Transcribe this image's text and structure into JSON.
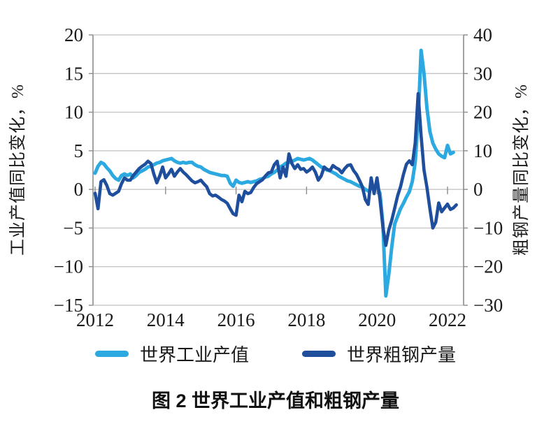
{
  "caption": "图 2  世界工业产值和粗钢产量",
  "chart_data": {
    "type": "line",
    "frequency": "monthly",
    "x_start": "2012-01",
    "unit": "%",
    "grid": true,
    "legend_position": "bottom",
    "x_ticks": {
      "labels": [
        "2012",
        "2014",
        "2016",
        "2018",
        "2020",
        "2022"
      ],
      "years": [
        2012,
        2014,
        2016,
        2018,
        2020,
        2022
      ]
    },
    "left_axis": {
      "label": "工业产值同比变化，%",
      "range": [
        -15,
        20
      ],
      "ticks": [
        20,
        15,
        10,
        5,
        0,
        -5,
        -10,
        -15
      ],
      "tick_labels": [
        "20",
        "15",
        "10",
        "5",
        "0",
        "−5",
        "−10",
        "−15"
      ]
    },
    "right_axis": {
      "label": "粗钢产量同比变化，%",
      "range": [
        -30,
        40
      ],
      "ticks": [
        40,
        30,
        20,
        10,
        0,
        -10,
        -20,
        -30
      ],
      "tick_labels": [
        "40",
        "30",
        "20",
        "10",
        "0",
        "−10",
        "−20",
        "−30"
      ]
    },
    "series": [
      {
        "name": "世界工业产值",
        "axis": "left",
        "color": "#2BA9E0",
        "x_end": "2022-03",
        "values": [
          2.1,
          3.0,
          3.5,
          3.3,
          2.8,
          2.4,
          1.8,
          1.4,
          1.2,
          1.8,
          2.0,
          1.8,
          2.0,
          1.5,
          1.8,
          2.2,
          2.4,
          2.6,
          2.9,
          3.0,
          3.2,
          3.4,
          3.5,
          3.7,
          3.8,
          3.9,
          4.0,
          3.7,
          3.5,
          3.4,
          3.5,
          3.4,
          3.5,
          3.5,
          3.2,
          3.0,
          2.9,
          2.6,
          2.4,
          2.2,
          2.1,
          2.0,
          1.9,
          1.8,
          1.8,
          1.7,
          0.8,
          0.4,
          1.2,
          0.9,
          0.8,
          0.9,
          1.0,
          0.9,
          1.0,
          1.1,
          1.3,
          1.4,
          1.6,
          1.7,
          2.0,
          2.2,
          2.5,
          2.9,
          3.1,
          3.4,
          3.5,
          3.6,
          3.8,
          4.0,
          3.9,
          3.8,
          3.9,
          4.0,
          3.8,
          3.5,
          3.2,
          2.9,
          2.7,
          2.5,
          2.4,
          2.2,
          2.0,
          1.7,
          1.5,
          1.3,
          1.1,
          1.0,
          0.8,
          0.6,
          0.4,
          0.3,
          0.0,
          -0.2,
          0.1,
          0.3,
          0.4,
          -0.5,
          -4.5,
          -13.8,
          -11.0,
          -7.5,
          -4.5,
          -3.5,
          -2.5,
          -1.8,
          -1.0,
          -0.3,
          1.0,
          3.5,
          9.0,
          18.0,
          15.0,
          10.5,
          7.5,
          6.0,
          5.2,
          4.6,
          4.3,
          4.1,
          5.7,
          4.6,
          4.8
        ]
      },
      {
        "name": "世界粗钢产量",
        "axis": "right",
        "color": "#1F4E9C",
        "x_end": "2022-04",
        "values": [
          -1.0,
          -5.0,
          2.0,
          2.5,
          1.0,
          -1.1,
          -1.5,
          -1.0,
          -0.5,
          1.5,
          3.0,
          2.4,
          2.4,
          3.6,
          4.5,
          5.4,
          6.0,
          6.5,
          7.3,
          6.7,
          4.0,
          1.7,
          3.5,
          5.8,
          3.0,
          4.0,
          5.2,
          3.4,
          4.5,
          5.4,
          4.5,
          3.8,
          3.0,
          2.2,
          1.7,
          2.0,
          2.4,
          1.5,
          0.7,
          -1.1,
          -1.7,
          -1.5,
          -2.0,
          -2.6,
          -3.0,
          -3.6,
          -5.0,
          -6.3,
          -6.7,
          -1.5,
          -3.2,
          -0.5,
          -1.1,
          -0.8,
          0.5,
          1.5,
          2.0,
          2.5,
          3.5,
          4.3,
          4.5,
          6.4,
          7.3,
          3.0,
          5.8,
          3.4,
          9.2,
          6.7,
          5.4,
          6.4,
          5.2,
          5.4,
          4.5,
          5.0,
          5.8,
          4.5,
          2.4,
          3.5,
          5.8,
          5.2,
          4.9,
          6.2,
          5.6,
          5.2,
          4.3,
          5.4,
          6.2,
          6.4,
          4.9,
          3.9,
          2.4,
          0.7,
          -2.6,
          -3.9,
          3.0,
          -1.1,
          3.0,
          -2.6,
          -9.7,
          -14.5,
          -10.5,
          -8.0,
          -4.9,
          -1.7,
          0.7,
          3.9,
          6.5,
          7.4,
          6.4,
          12.0,
          24.8,
          14.0,
          5.0,
          0.5,
          -5.0,
          -10.0,
          -8.5,
          -3.5,
          -5.8,
          -4.8,
          -3.8,
          -5.2,
          -4.8,
          -4.0
        ]
      }
    ]
  }
}
